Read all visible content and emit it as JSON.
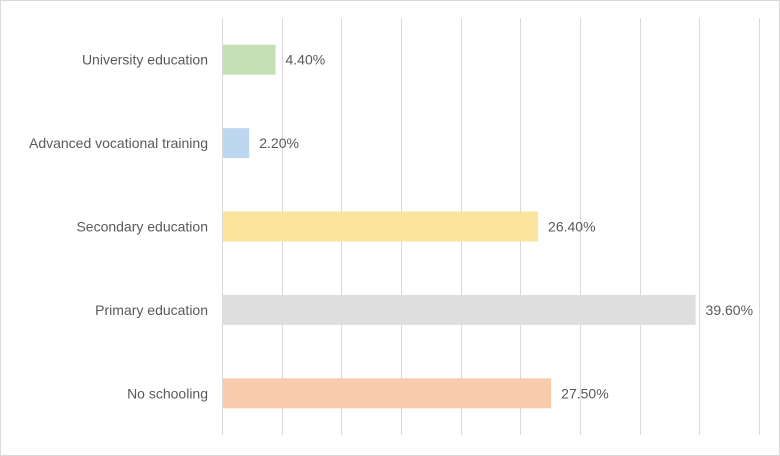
{
  "chart_data": {
    "type": "bar",
    "orientation": "horizontal",
    "title": "",
    "xlabel": "",
    "ylabel": "",
    "xlim": [
      0,
      45
    ],
    "grid_step": 5,
    "grid": true,
    "categories": [
      "University education",
      "Advanced vocational training",
      "Secondary education",
      "Primary education",
      "No schooling"
    ],
    "values": [
      4.4,
      2.2,
      26.4,
      39.6,
      27.5
    ],
    "data_labels": [
      "4.40%",
      "2.20%",
      "26.40%",
      "39.60%",
      "27.50%"
    ],
    "colors": [
      "#c5e0b4",
      "#bdd7ee",
      "#fbe59d",
      "#dedede",
      "#f8cbad"
    ],
    "gridline_color": "#d9d9d9"
  }
}
